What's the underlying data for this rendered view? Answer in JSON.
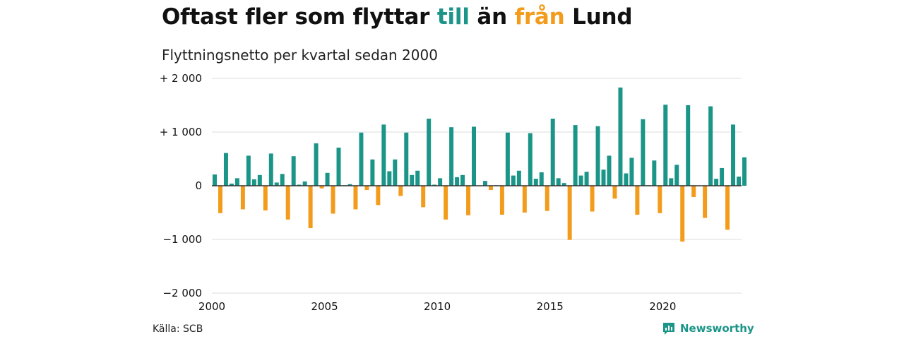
{
  "title": {
    "part1": "Oftast fler som flyttar ",
    "pos_word": "till",
    "part2": " än ",
    "neg_word": "från",
    "part3": " Lund"
  },
  "subtitle": "Flyttningsnetto per kvartal sedan 2000",
  "source": "Källa: SCB",
  "brand": {
    "name": "Newsworthy",
    "icon": "newsworthy-logo-icon"
  },
  "colors": {
    "positive": "#1a9588",
    "negative": "#f39c1c",
    "grid": "#dddddd",
    "axis": "#333333"
  },
  "chart_data": {
    "type": "bar",
    "ylim": [
      -2000,
      2000
    ],
    "xlim": [
      2000.0,
      2023.5
    ],
    "yticks": [
      {
        "value": 2000,
        "label": "+ 2 000"
      },
      {
        "value": 1000,
        "label": "+ 1 000"
      },
      {
        "value": 0,
        "label": "0"
      },
      {
        "value": -1000,
        "label": "−1 000"
      },
      {
        "value": -2000,
        "label": "−2 000"
      }
    ],
    "xticks": [
      {
        "value": 2000,
        "label": "2000"
      },
      {
        "value": 2005,
        "label": "2005"
      },
      {
        "value": 2010,
        "label": "2010"
      },
      {
        "value": 2015,
        "label": "2015"
      },
      {
        "value": 2020,
        "label": "2020"
      }
    ],
    "grid": true,
    "start_year": 2000,
    "values": [
      210,
      -510,
      610,
      40,
      140,
      -440,
      560,
      120,
      200,
      -460,
      600,
      60,
      220,
      -630,
      550,
      20,
      80,
      -790,
      790,
      -50,
      240,
      -520,
      710,
      10,
      30,
      -440,
      990,
      -80,
      490,
      -360,
      1140,
      270,
      490,
      -190,
      990,
      200,
      280,
      -400,
      1250,
      20,
      140,
      -630,
      1090,
      160,
      200,
      -550,
      1100,
      0,
      90,
      -80,
      10,
      -540,
      990,
      190,
      280,
      -500,
      980,
      130,
      250,
      -470,
      1250,
      140,
      50,
      -1010,
      1130,
      190,
      260,
      -480,
      1110,
      300,
      560,
      -240,
      1830,
      230,
      520,
      -540,
      1240,
      10,
      470,
      -510,
      1510,
      140,
      390,
      -1040,
      1500,
      -210,
      0,
      -600,
      1480,
      130,
      330,
      -820,
      1140,
      170,
      530
    ]
  }
}
